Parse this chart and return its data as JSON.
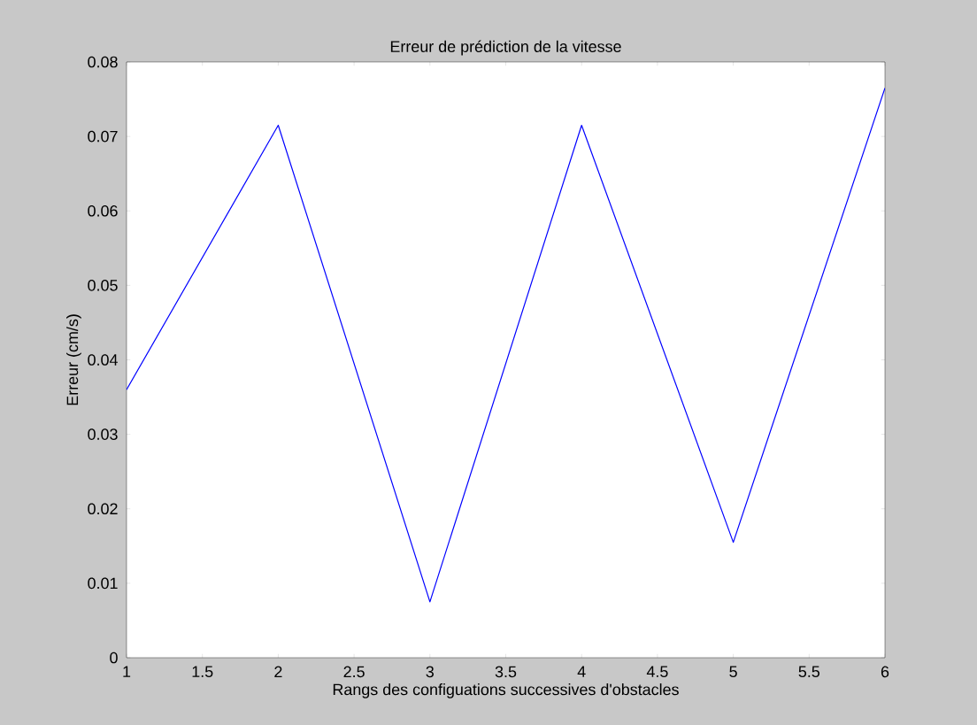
{
  "chart_data": {
    "type": "line",
    "title": "Erreur de prédiction de la vitesse",
    "xlabel": "Rangs des configuations successives d'obstacles",
    "ylabel": "Erreur (cm/s)",
    "x": [
      1,
      2,
      3,
      4,
      5,
      6
    ],
    "series": [
      {
        "color": "#0000ff",
        "values": [
          0.036,
          0.0715,
          0.0075,
          0.0715,
          0.0155,
          0.0765
        ]
      }
    ],
    "xlim": [
      1,
      6
    ],
    "ylim": [
      0,
      0.08
    ],
    "xticks": [
      1,
      1.5,
      2,
      2.5,
      3,
      3.5,
      4,
      4.5,
      5,
      5.5,
      6
    ],
    "yticks": [
      0,
      0.01,
      0.02,
      0.03,
      0.04,
      0.05,
      0.06,
      0.07,
      0.08
    ],
    "grid": false,
    "marker": "none",
    "line_style": "solid"
  }
}
